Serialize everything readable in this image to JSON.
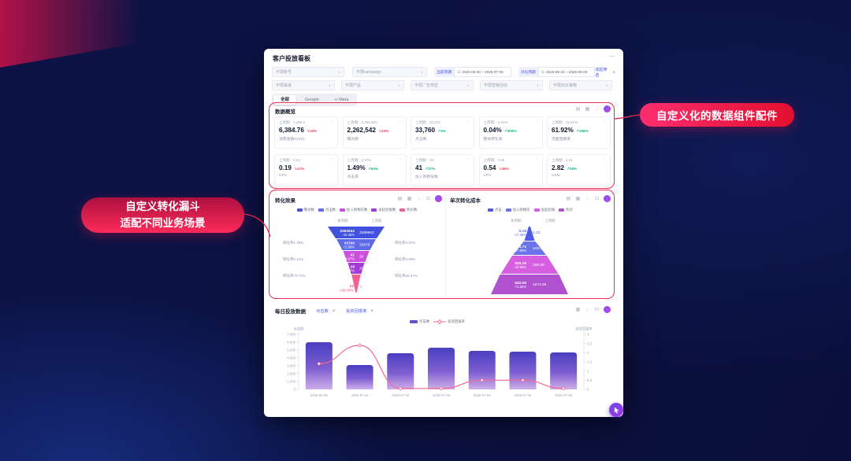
{
  "window": {
    "title": "客户投放看板"
  },
  "icons": {
    "minimize": "—",
    "chevron_down": "∨",
    "chevron_up": "∧",
    "calendar": "⊞",
    "list": "▤",
    "table": "▦",
    "download": "↓",
    "copy": "⊡",
    "more": "⋯",
    "meta": "∞",
    "arrow_up": "↗",
    "arrow_down": "↘",
    "ai": "∙"
  },
  "filters": {
    "row1_selects": [
      "不限账号",
      "不限campaign"
    ],
    "row2_selects": [
      "不限渠道",
      "不限产品",
      "不限广告类型",
      "不限营销活动",
      "不限出价策略"
    ],
    "current_period_label": "当前周期",
    "current_range": "2025-06-30 ~ 2025-07-06",
    "compare_period_label": "对比周期",
    "compare_range": "2025-06-23 ~ 2025-06-29",
    "collapse_label": "收起筛选"
  },
  "tabs": [
    {
      "label": "全部",
      "active": true
    },
    {
      "label": "Google",
      "active": false
    },
    {
      "label": "Meta",
      "active": false,
      "meta_icon": true
    }
  ],
  "overview": {
    "title": "数据概览",
    "prev_prefix": "上周期：",
    "cards": [
      {
        "prev": "7,498.2",
        "value": "6,384.76",
        "change": "15%",
        "dir": "down",
        "label": "消费金额(USD)"
      },
      {
        "prev": "3,389,963",
        "value": "2,262,542",
        "change": "33%",
        "dir": "down",
        "label": "曝光数"
      },
      {
        "prev": "32,878",
        "value": "33,760",
        "change": "3%",
        "dir": "up",
        "label": "点击数"
      },
      {
        "prev": "0.01%",
        "value": "0.04%",
        "change": "300%",
        "dir": "up",
        "label": "整体转化率"
      },
      {
        "prev": "21.67%",
        "value": "61.92%",
        "change": "186%",
        "dir": "up",
        "label": "页面回跳率"
      },
      {
        "prev": "0.23",
        "value": "0.19",
        "change": "17%",
        "dir": "down",
        "label": "CPC"
      },
      {
        "prev": "0.97%",
        "value": "1.49%",
        "change": "54%",
        "dir": "up",
        "label": "点击率"
      },
      {
        "prev": "30",
        "value": "41",
        "change": "37%",
        "dir": "up",
        "label": "加入购物车数"
      },
      {
        "prev": "0.88",
        "value": "0.54",
        "change": "38%",
        "dir": "down",
        "label": "CPV"
      },
      {
        "prev": "2.21",
        "value": "2.82",
        "change": "28%",
        "dir": "up",
        "label": "CPM"
      }
    ]
  },
  "funnel_panel": {
    "title": "转化效果",
    "col_current": "本周期",
    "col_previous": "上周期",
    "legend": [
      {
        "label": "曝光数",
        "color": "#4150dd"
      },
      {
        "label": "点击数",
        "color": "#5f6ae8"
      },
      {
        "label": "加入购物车数",
        "color": "#cb4fdc"
      },
      {
        "label": "发起结账数",
        "color": "#a23bd4"
      },
      {
        "label": "购买数",
        "color": "#f2608f"
      }
    ],
    "rows": [
      {
        "current": "2262542",
        "change": "-33.46%",
        "previous": "3389963"
      },
      {
        "current": "33760",
        "change": "+2.68%",
        "previous": "32878"
      },
      {
        "current": "41",
        "change": "+36.67%",
        "previous": "30"
      },
      {
        "current": "29",
        "change": "+45.00%",
        "previous": "20"
      },
      {
        "current": "12",
        "change": "+200.00%",
        "previous": "4"
      }
    ],
    "left_labels": [
      "转化率1.49%",
      "转化率0.12%",
      "转化率70.73%"
    ],
    "right_labels": [
      "转化率0.97%",
      "转化率0.09%",
      "转化率66.67%"
    ]
  },
  "cost_panel": {
    "title": "单次转化成本",
    "col_current": "本周期",
    "col_previous": "上周期",
    "legend": [
      {
        "label": "点击",
        "color": "#4c5ce8"
      },
      {
        "label": "加入购物车",
        "color": "#6b74e8"
      },
      {
        "label": "发起结账",
        "color": "#d55fe0"
      },
      {
        "label": "购买",
        "color": "#b052d0"
      }
    ],
    "rows": [
      {
        "current": "0.19",
        "change": "-17.39%",
        "previous": "0.23"
      },
      {
        "current": "155.71",
        "change": "-37.69%",
        "previous": "249.93"
      },
      {
        "current": "220.16",
        "change": "-23.66%",
        "previous": "288.39"
      },
      {
        "current": "532.06",
        "change": "-71.62%",
        "previous": "1874.55"
      }
    ]
  },
  "daily": {
    "title": "每日投放数据",
    "selector1": "点击数",
    "selector2": "投资回报率",
    "legend_bar": "点击数",
    "legend_line": "投资回报率",
    "axis_left_title": "点击数",
    "axis_right_title": "投资回报率"
  },
  "chart_data": [
    {
      "type": "funnel",
      "title": "转化效果",
      "stages": [
        "曝光数",
        "点击数",
        "加入购物车数",
        "发起结账数",
        "购买数"
      ],
      "series": [
        {
          "name": "本周期",
          "values": [
            2262542,
            33760,
            41,
            29,
            12
          ]
        },
        {
          "name": "上周期",
          "values": [
            3389963,
            32878,
            30,
            20,
            4
          ]
        }
      ],
      "changes": [
        "-33.46%",
        "+2.68%",
        "+36.67%",
        "+45.00%",
        "+200.00%"
      ],
      "conversion_current": [
        "1.49%",
        "0.12%",
        "70.73%"
      ],
      "conversion_previous": [
        "0.97%",
        "0.09%",
        "66.67%"
      ]
    },
    {
      "type": "funnel",
      "title": "单次转化成本",
      "stages": [
        "点击",
        "加入购物车",
        "发起结账",
        "购买"
      ],
      "series": [
        {
          "name": "本周期",
          "values": [
            0.19,
            155.71,
            220.16,
            532.06
          ]
        },
        {
          "name": "上周期",
          "values": [
            0.23,
            249.93,
            288.39,
            1874.55
          ]
        }
      ],
      "changes": [
        "-17.39%",
        "-37.69%",
        "-23.66%",
        "-71.62%"
      ]
    },
    {
      "type": "bar",
      "title": "每日投放数据",
      "categories": [
        "2025-06-30",
        "2025-07-01",
        "2025-07-02",
        "2025-07-03",
        "2025-07-04",
        "2025-07-05",
        "2025-07-06"
      ],
      "series": [
        {
          "name": "点击数",
          "type": "bar",
          "values": [
            6000,
            3100,
            4600,
            5300,
            4900,
            4800,
            4700
          ]
        },
        {
          "name": "投资回报率",
          "type": "line",
          "values": [
            1.4,
            2.4,
            0.05,
            0.05,
            0.5,
            0.5,
            0.05
          ]
        }
      ],
      "xlabel": "",
      "ylabel_left": "点击数",
      "ylabel_right": "投资回报率",
      "ylim_left": [
        0,
        7000
      ],
      "ylim_right": [
        0,
        3
      ],
      "legend_position": "top",
      "grid": false
    }
  ],
  "annotations": {
    "right_label": "自定义化的数据组件配件",
    "left_line1": "自定义转化漏斗",
    "left_line2": "适配不同业务场景"
  },
  "colors": {
    "up": "#14b87d",
    "down": "#f4415f",
    "accent": "#4656e8",
    "annotation_red": "#ea2a52",
    "bar_top": "#4a3fc0",
    "bar_bottom": "#cfaeea",
    "line": "#f2698e"
  }
}
